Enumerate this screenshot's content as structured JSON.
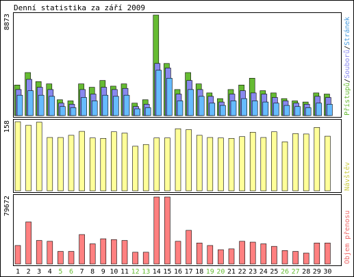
{
  "title": "Denní statistika za září 2009",
  "colors": {
    "background": "#ffffff",
    "frame": "#000000",
    "hits": "#66bb33",
    "files": "#8888ee",
    "pages": "#66bbff",
    "visits": "#ffff99",
    "volume": "#ff8080",
    "weekend_label": "#66bb33",
    "weekday_label": "#000000"
  },
  "panels": {
    "requests": {
      "ymax_label": "8873",
      "legend": [
        {
          "text": "Přístupů",
          "color": "#66bb33"
        },
        {
          "text": "/",
          "color": "#000000"
        },
        {
          "text": "Souborů",
          "color": "#8888ee"
        },
        {
          "text": "/",
          "color": "#000000"
        },
        {
          "text": "Stránek",
          "color": "#4499dd"
        }
      ]
    },
    "visits": {
      "ymax_label": "158",
      "legend": [
        {
          "text": "Návštěv",
          "color": "#cccc44"
        }
      ]
    },
    "volume": {
      "ymax_label": "79672",
      "legend": [
        {
          "text": "Objem přenosu",
          "color": "#ee6666"
        }
      ]
    }
  },
  "chart_data": {
    "type": "bar",
    "title": "Denní statistika za září 2009",
    "categories": [
      "1",
      "2",
      "3",
      "4",
      "5",
      "6",
      "7",
      "8",
      "9",
      "10",
      "11",
      "12",
      "13",
      "14",
      "15",
      "16",
      "17",
      "18",
      "19",
      "20",
      "21",
      "22",
      "23",
      "24",
      "25",
      "26",
      "27",
      "28",
      "29",
      "30"
    ],
    "weekend_days": [
      "5",
      "6",
      "12",
      "13",
      "19",
      "20",
      "26",
      "27"
    ],
    "panels": [
      {
        "name": "requests",
        "ymax": 8873,
        "series": [
          {
            "name": "Přístupů",
            "values": [
              2700,
              3800,
              3000,
              2800,
              1400,
              1300,
              2800,
              2500,
              3100,
              2600,
              2800,
              1100,
              1400,
              8873,
              4600,
              2300,
              3800,
              2800,
              2000,
              1500,
              2300,
              2700,
              3300,
              2200,
              2000,
              1500,
              1300,
              1200,
              2000,
              1900
            ]
          },
          {
            "name": "Souborů",
            "values": [
              2300,
              3200,
              2500,
              2300,
              1100,
              1000,
              2300,
              1900,
              2500,
              2300,
              2400,
              800,
              1000,
              4600,
              4200,
              1900,
              3100,
              2300,
              1700,
              1200,
              1900,
              2200,
              2000,
              1900,
              1600,
              1300,
              1100,
              1000,
              1700,
              1600
            ]
          },
          {
            "name": "Stránek",
            "values": [
              1800,
              2200,
              1800,
              1700,
              800,
              700,
              1600,
              1300,
              1800,
              1700,
              1800,
              600,
              700,
              4000,
              3300,
              1300,
              2300,
              1700,
              1100,
              900,
              1300,
              1500,
              1300,
              1200,
              1100,
              900,
              800,
              700,
              1100,
              1000
            ]
          }
        ]
      },
      {
        "name": "visits",
        "ymax": 158,
        "series": [
          {
            "name": "Návštěv",
            "values": [
              158,
              150,
              157,
              122,
              122,
              127,
              136,
              121,
              120,
              135,
              132,
              102,
              106,
              121,
              121,
              142,
              140,
              127,
              122,
              121,
              120,
              124,
              134,
              122,
              135,
              112,
              131,
              130,
              145,
              125
            ]
          }
        ]
      },
      {
        "name": "volume",
        "ymax": 79672,
        "series": [
          {
            "name": "Objem přenosu",
            "values": [
              22000,
              50000,
              28000,
              27000,
              15000,
              15000,
              35000,
              24000,
              30000,
              29000,
              28000,
              14000,
              14000,
              79672,
              79672,
              27000,
              40000,
              25000,
              22000,
              17000,
              18000,
              27000,
              26000,
              24000,
              21000,
              16000,
              15000,
              13000,
              25000,
              25000
            ]
          }
        ]
      }
    ]
  }
}
